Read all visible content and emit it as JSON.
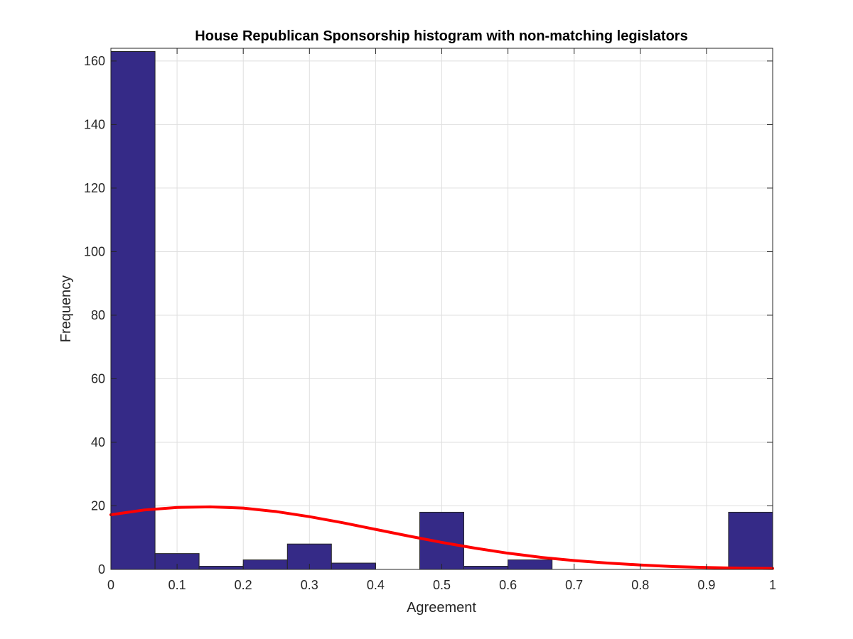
{
  "chart_data": {
    "type": "bar",
    "title": "House Republican Sponsorship histogram with non-matching legislators",
    "xlabel": "Agreement",
    "ylabel": "Frequency",
    "xlim": [
      0,
      1
    ],
    "ylim": [
      0,
      164
    ],
    "grid": true,
    "x_ticks": [
      0,
      0.1,
      0.2,
      0.3,
      0.4,
      0.5,
      0.6,
      0.7,
      0.8,
      0.9,
      1
    ],
    "x_tick_labels": [
      "0",
      "0.1",
      "0.2",
      "0.3",
      "0.4",
      "0.5",
      "0.6",
      "0.7",
      "0.8",
      "0.9",
      "1"
    ],
    "y_ticks": [
      0,
      20,
      40,
      60,
      80,
      100,
      120,
      140,
      160
    ],
    "y_tick_labels": [
      "0",
      "20",
      "40",
      "60",
      "80",
      "100",
      "120",
      "140",
      "160"
    ],
    "bin_edges": [
      0,
      0.0667,
      0.1333,
      0.2,
      0.2667,
      0.3333,
      0.4,
      0.4667,
      0.5333,
      0.6,
      0.6667,
      0.7333,
      0.8,
      0.8667,
      0.9333,
      1
    ],
    "values": [
      163,
      5,
      1,
      3,
      8,
      2,
      0,
      18,
      1,
      3,
      0,
      0,
      0,
      0,
      18
    ],
    "bar_color": "#352a87",
    "bar_edge_color": "#262626",
    "fit_curve": {
      "color": "#ff0000",
      "x": [
        0,
        0.05,
        0.1,
        0.15,
        0.2,
        0.25,
        0.3,
        0.35,
        0.4,
        0.45,
        0.5,
        0.55,
        0.6,
        0.65,
        0.7,
        0.75,
        0.8,
        0.85,
        0.9,
        0.95,
        1
      ],
      "y": [
        17.2,
        18.7,
        19.5,
        19.7,
        19.3,
        18.2,
        16.6,
        14.7,
        12.6,
        10.5,
        8.5,
        6.7,
        5.1,
        3.8,
        2.8,
        2.0,
        1.4,
        0.9,
        0.6,
        0.4,
        0.3
      ]
    }
  }
}
